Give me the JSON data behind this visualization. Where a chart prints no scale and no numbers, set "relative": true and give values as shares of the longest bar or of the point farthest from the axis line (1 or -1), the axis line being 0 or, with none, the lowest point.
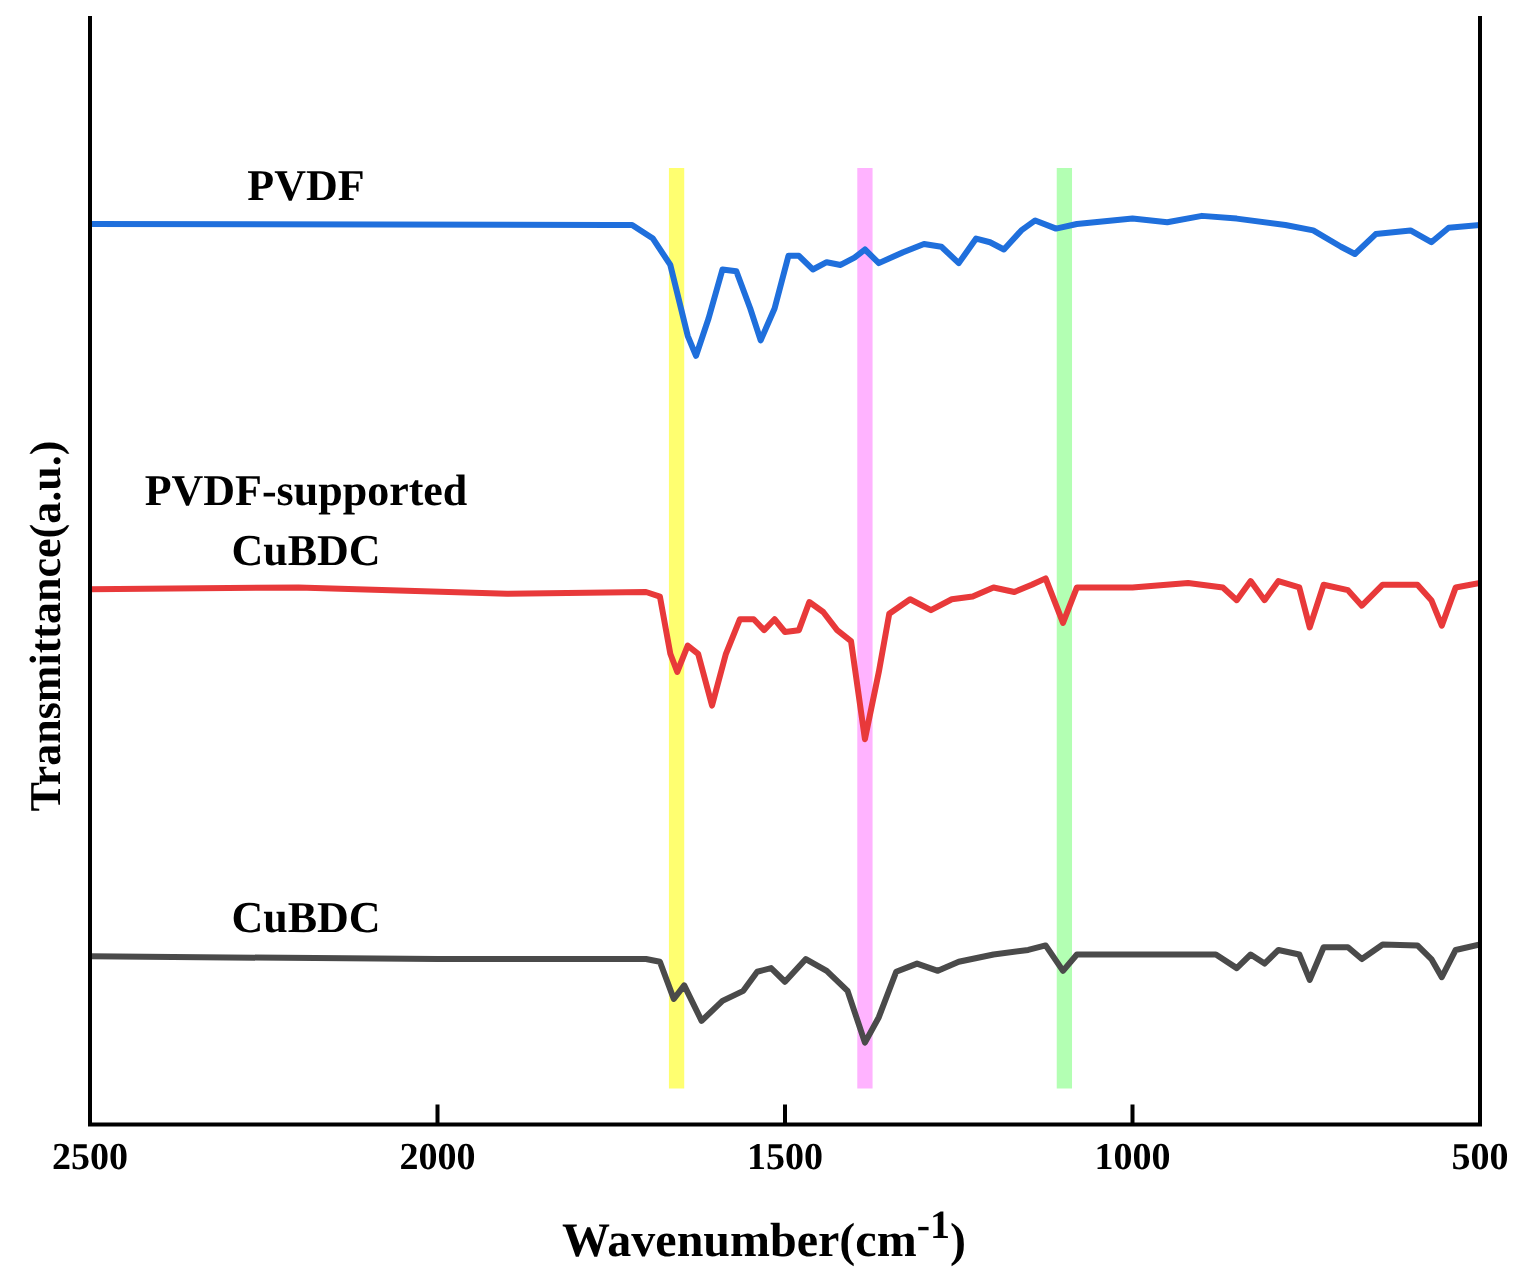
{
  "chart_data": {
    "type": "line",
    "xlabel": "Wavenumber(cm$^{-1}$)",
    "ylabel": "Transmittance(a.u.)",
    "relative": true,
    "xlim": [
      2500,
      500
    ],
    "xticks": [
      2500,
      2000,
      1500,
      1000,
      500
    ],
    "line_style": "solid",
    "legend": false,
    "series": [
      {
        "name": "PVDF",
        "color": "#1f6fdc",
        "x": [
          2500,
          1750,
          1720,
          1690,
          1665,
          1640,
          1628,
          1610,
          1590,
          1570,
          1550,
          1535,
          1515,
          1495,
          1480,
          1460,
          1440,
          1420,
          1400,
          1385,
          1365,
          1330,
          1300,
          1275,
          1250,
          1225,
          1205,
          1185,
          1160,
          1140,
          1110,
          1080,
          1000,
          950,
          900,
          850,
          780,
          740,
          700,
          680,
          650,
          600,
          570,
          545,
          500
        ],
        "values": [
          0.991,
          0.99,
          0.99,
          0.975,
          0.946,
          0.868,
          0.846,
          0.887,
          0.941,
          0.939,
          0.898,
          0.863,
          0.898,
          0.956,
          0.956,
          0.941,
          0.949,
          0.946,
          0.954,
          0.963,
          0.948,
          0.96,
          0.969,
          0.966,
          0.948,
          0.975,
          0.971,
          0.963,
          0.984,
          0.995,
          0.986,
          0.991,
          0.997,
          0.993,
          1,
          0.997,
          0.99,
          0.984,
          0.966,
          0.958,
          0.98,
          0.984,
          0.971,
          0.987,
          0.99
        ]
      },
      {
        "name": "PVDF-supported CuBDC",
        "color": "#e8393a",
        "x": [
          2500,
          2200,
          1900,
          1700,
          1680,
          1665,
          1655,
          1640,
          1625,
          1605,
          1585,
          1565,
          1545,
          1530,
          1515,
          1500,
          1480,
          1465,
          1445,
          1425,
          1405,
          1385,
          1365,
          1350,
          1320,
          1290,
          1260,
          1230,
          1200,
          1170,
          1145,
          1125,
          1100,
          1080,
          1000,
          920,
          870,
          850,
          830,
          810,
          790,
          760,
          745,
          725,
          690,
          670,
          640,
          590,
          570,
          555,
          535,
          500
        ],
        "values": [
          0.589,
          0.591,
          0.584,
          0.586,
          0.581,
          0.518,
          0.498,
          0.527,
          0.518,
          0.461,
          0.518,
          0.556,
          0.556,
          0.544,
          0.556,
          0.542,
          0.544,
          0.575,
          0.564,
          0.544,
          0.532,
          0.424,
          0.498,
          0.562,
          0.578,
          0.566,
          0.578,
          0.581,
          0.591,
          0.586,
          0.594,
          0.601,
          0.552,
          0.591,
          0.591,
          0.596,
          0.591,
          0.577,
          0.598,
          0.577,
          0.598,
          0.591,
          0.547,
          0.594,
          0.588,
          0.571,
          0.594,
          0.594,
          0.577,
          0.549,
          0.591,
          0.596
        ]
      },
      {
        "name": "CuBDC",
        "color": "#4a4a4a",
        "x": [
          2500,
          2000,
          1700,
          1680,
          1660,
          1645,
          1620,
          1590,
          1560,
          1540,
          1520,
          1500,
          1470,
          1440,
          1410,
          1385,
          1365,
          1340,
          1310,
          1280,
          1250,
          1200,
          1150,
          1125,
          1100,
          1080,
          1000,
          880,
          850,
          830,
          810,
          790,
          760,
          745,
          725,
          690,
          670,
          640,
          590,
          570,
          555,
          535,
          500
        ],
        "values": [
          0.185,
          0.182,
          0.182,
          0.179,
          0.138,
          0.153,
          0.114,
          0.136,
          0.147,
          0.168,
          0.172,
          0.157,
          0.182,
          0.169,
          0.147,
          0.09,
          0.118,
          0.168,
          0.177,
          0.169,
          0.179,
          0.187,
          0.192,
          0.197,
          0.169,
          0.187,
          0.187,
          0.187,
          0.172,
          0.187,
          0.177,
          0.192,
          0.187,
          0.159,
          0.195,
          0.195,
          0.182,
          0.198,
          0.197,
          0.182,
          0.162,
          0.192,
          0.198
        ]
      }
    ],
    "bands": [
      {
        "axis": "x",
        "from": 1667,
        "to": 1645,
        "color": "#ffff70"
      },
      {
        "axis": "x",
        "from": 1396,
        "to": 1374,
        "color": "#ffb3ff"
      },
      {
        "axis": "x",
        "from": 1109,
        "to": 1087,
        "color": "#b3ffb3"
      }
    ]
  }
}
